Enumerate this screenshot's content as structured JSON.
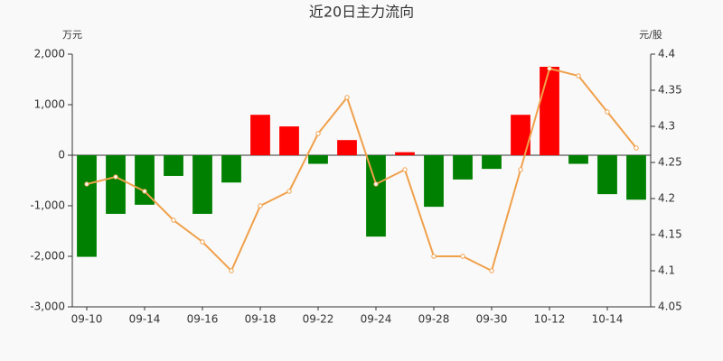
{
  "chart_data": {
    "type": "combo",
    "title": "近20日主力流向",
    "y_label": "万元",
    "y2_label": "元/股",
    "categories": [
      "09-10",
      null,
      "09-14",
      null,
      "09-16",
      null,
      "09-18",
      null,
      "09-22",
      null,
      "09-24",
      null,
      "09-28",
      null,
      "09-30",
      null,
      "10-12",
      null,
      "10-14",
      null
    ],
    "series": [
      {
        "type": "bar",
        "up_color": "#ff0000",
        "down_color": "#008000",
        "values": [
          -2010,
          -1160,
          -980,
          -410,
          -1160,
          -540,
          800,
          570,
          -170,
          300,
          -1610,
          60,
          -1020,
          -480,
          -270,
          800,
          1750,
          -170,
          -770,
          -880
        ]
      },
      {
        "type": "line",
        "axis": "y2",
        "color": "#f0a04b",
        "values": [
          4.22,
          4.23,
          4.21,
          4.17,
          4.14,
          4.1,
          4.19,
          4.21,
          4.29,
          4.34,
          4.22,
          4.24,
          4.12,
          4.12,
          4.1,
          4.24,
          4.38,
          4.37,
          4.32,
          4.27
        ]
      }
    ],
    "ylim": [
      -3000,
      2000
    ],
    "yticks": [
      {
        "value": -3000,
        "label": "-3,000"
      },
      {
        "value": -2000,
        "label": "-2,000"
      },
      {
        "value": -1000,
        "label": "-1,000"
      },
      0,
      {
        "value": 1000,
        "label": "1,000"
      },
      {
        "value": 2000,
        "label": "2,000"
      }
    ],
    "y2lim": [
      4.05,
      4.4
    ],
    "y2ticks": [
      4.05,
      4.1,
      4.15,
      4.2,
      4.25,
      4.3,
      4.35,
      4.4
    ]
  }
}
